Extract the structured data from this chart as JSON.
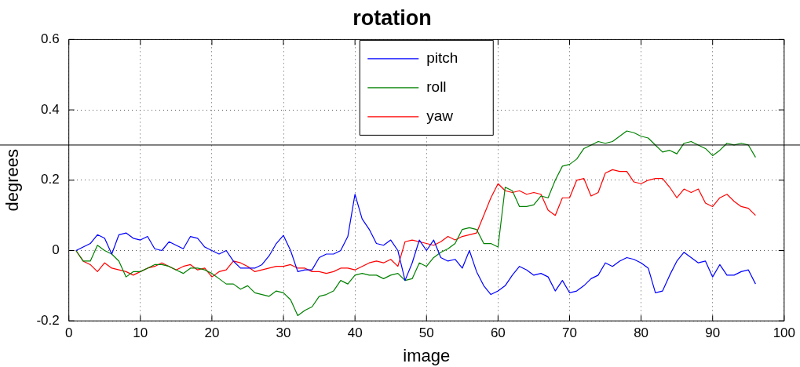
{
  "chart_data": {
    "type": "line",
    "title": "rotation",
    "xlabel": "image",
    "ylabel": "degrees",
    "x": [
      1,
      2,
      3,
      4,
      5,
      6,
      7,
      8,
      9,
      10,
      11,
      12,
      13,
      14,
      15,
      16,
      17,
      18,
      19,
      20,
      21,
      22,
      23,
      24,
      25,
      26,
      27,
      28,
      29,
      30,
      31,
      32,
      33,
      34,
      35,
      36,
      37,
      38,
      39,
      40,
      41,
      42,
      43,
      44,
      45,
      46,
      47,
      48,
      49,
      50,
      51,
      52,
      53,
      54,
      55,
      56,
      57,
      58,
      59,
      60,
      61,
      62,
      63,
      64,
      65,
      66,
      67,
      68,
      69,
      70,
      71,
      72,
      73,
      74,
      75,
      76,
      77,
      78,
      79,
      80,
      81,
      82,
      83,
      84,
      85,
      86,
      87,
      88,
      89,
      90,
      91,
      92,
      93,
      94,
      95,
      96
    ],
    "series": [
      {
        "name": "pitch",
        "color": "#0000ff",
        "values": [
          0,
          0.01,
          0.02,
          0.045,
          0.035,
          -0.01,
          0.045,
          0.05,
          0.035,
          0.03,
          0.04,
          0.005,
          0,
          0.025,
          0.015,
          0.005,
          0.04,
          0.035,
          0.01,
          0,
          -0.01,
          0,
          -0.03,
          -0.05,
          -0.05,
          -0.05,
          -0.04,
          -0.015,
          0.02,
          0.043,
          0,
          -0.06,
          -0.055,
          -0.055,
          -0.02,
          -0.01,
          -0.01,
          0,
          0.04,
          0.16,
          0.09,
          0.06,
          0.02,
          0.015,
          0.03,
          0,
          -0.085,
          -0.035,
          0.03,
          0,
          0.03,
          -0.02,
          -0.03,
          -0.025,
          -0.05,
          0,
          -0.06,
          -0.1,
          -0.125,
          -0.115,
          -0.1,
          -0.07,
          -0.045,
          -0.055,
          -0.07,
          -0.065,
          -0.075,
          -0.115,
          -0.085,
          -0.12,
          -0.115,
          -0.1,
          -0.08,
          -0.07,
          -0.035,
          -0.045,
          -0.03,
          -0.02,
          -0.025,
          -0.035,
          -0.05,
          -0.12,
          -0.115,
          -0.07,
          -0.03,
          -0.005,
          -0.02,
          -0.035,
          -0.03,
          -0.075,
          -0.04,
          -0.07,
          -0.07,
          -0.06,
          -0.055,
          -0.095
        ]
      },
      {
        "name": "roll",
        "color": "#008000",
        "values": [
          0,
          -0.03,
          -0.03,
          0.015,
          0,
          -0.01,
          -0.03,
          -0.075,
          -0.06,
          -0.06,
          -0.05,
          -0.04,
          -0.04,
          -0.045,
          -0.055,
          -0.065,
          -0.05,
          -0.05,
          -0.055,
          -0.065,
          -0.08,
          -0.095,
          -0.095,
          -0.11,
          -0.1,
          -0.12,
          -0.125,
          -0.13,
          -0.115,
          -0.12,
          -0.14,
          -0.185,
          -0.17,
          -0.16,
          -0.13,
          -0.125,
          -0.115,
          -0.085,
          -0.095,
          -0.07,
          -0.065,
          -0.07,
          -0.07,
          -0.08,
          -0.07,
          -0.065,
          -0.085,
          -0.08,
          -0.035,
          -0.045,
          -0.02,
          -0.005,
          0.005,
          0.02,
          0.06,
          0.065,
          0.06,
          0.02,
          0.02,
          0.01,
          0.18,
          0.17,
          0.125,
          0.125,
          0.13,
          0.155,
          0.15,
          0.2,
          0.24,
          0.245,
          0.26,
          0.29,
          0.3,
          0.31,
          0.305,
          0.31,
          0.325,
          0.34,
          0.335,
          0.325,
          0.32,
          0.3,
          0.28,
          0.285,
          0.275,
          0.305,
          0.31,
          0.3,
          0.29,
          0.27,
          0.285,
          0.305,
          0.3,
          0.305,
          0.3,
          0.265
        ]
      },
      {
        "name": "yaw",
        "color": "#ff0000",
        "values": [
          0,
          -0.03,
          -0.04,
          -0.06,
          -0.035,
          -0.05,
          -0.055,
          -0.06,
          -0.07,
          -0.06,
          -0.05,
          -0.045,
          -0.035,
          -0.045,
          -0.055,
          -0.045,
          -0.04,
          -0.055,
          -0.05,
          -0.075,
          -0.06,
          -0.055,
          -0.03,
          -0.035,
          -0.045,
          -0.06,
          -0.055,
          -0.05,
          -0.045,
          -0.045,
          -0.04,
          -0.05,
          -0.05,
          -0.06,
          -0.06,
          -0.065,
          -0.06,
          -0.05,
          -0.05,
          -0.055,
          -0.045,
          -0.035,
          -0.03,
          -0.035,
          -0.025,
          -0.045,
          0.025,
          0.03,
          0.025,
          0.02,
          0.015,
          0.025,
          0.04,
          0.03,
          0.04,
          0.045,
          0.05,
          0.1,
          0.15,
          0.19,
          0.17,
          0.165,
          0.17,
          0.16,
          0.165,
          0.16,
          0.115,
          0.1,
          0.15,
          0.15,
          0.2,
          0.205,
          0.155,
          0.165,
          0.22,
          0.23,
          0.225,
          0.225,
          0.195,
          0.19,
          0.2,
          0.205,
          0.205,
          0.18,
          0.15,
          0.175,
          0.165,
          0.175,
          0.135,
          0.125,
          0.15,
          0.16,
          0.14,
          0.125,
          0.12,
          0.1
        ]
      }
    ],
    "xlim": [
      0,
      100
    ],
    "xticks": [
      0,
      10,
      20,
      30,
      40,
      50,
      60,
      70,
      80,
      90,
      100
    ],
    "ylim": [
      -0.2,
      0.6
    ],
    "yticks": [
      -0.2,
      0,
      0.2,
      0.4,
      0.6
    ],
    "ref_lines": [
      {
        "axis": "y",
        "value": 0.3,
        "color": "#000000"
      }
    ],
    "grid": true,
    "legend": "top",
    "line_style": "solid"
  }
}
